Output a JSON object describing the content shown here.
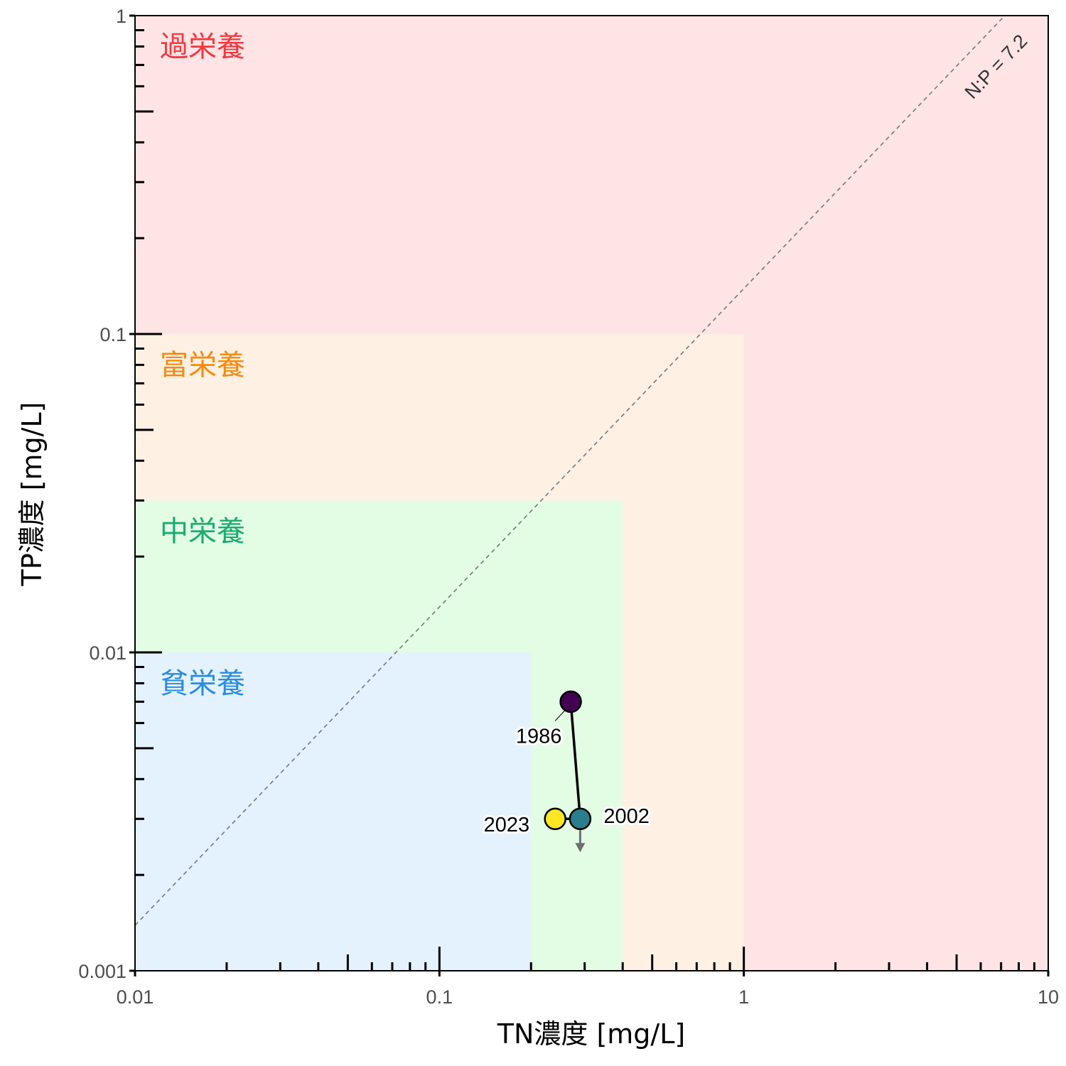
{
  "chart_data": {
    "type": "scatter",
    "title": "",
    "xlabel": "TN濃度 [mg/L]",
    "ylabel": "TP濃度 [mg/L]",
    "x_scale": "log",
    "y_scale": "log",
    "xlim": [
      0.01,
      10
    ],
    "ylim": [
      0.001,
      1
    ],
    "x_ticks": [
      {
        "value": 0.01,
        "label": "0.01"
      },
      {
        "value": 0.1,
        "label": "0.1"
      },
      {
        "value": 1,
        "label": "1"
      },
      {
        "value": 10,
        "label": "10"
      }
    ],
    "y_ticks": [
      {
        "value": 0.001,
        "label": "0.001"
      },
      {
        "value": 0.01,
        "label": "0.01"
      },
      {
        "value": 0.1,
        "label": "0.1"
      },
      {
        "value": 1,
        "label": "1"
      }
    ],
    "grid": false,
    "zones": [
      {
        "label": "過栄養",
        "tn_max": 10,
        "tp_max": 1,
        "fill": "#ffe4e6",
        "text_color": "#f0393f"
      },
      {
        "label": "富栄養",
        "tn_max": 1,
        "tp_max": 0.1,
        "fill": "#fff0e4",
        "text_color": "#f58b0c"
      },
      {
        "label": "中栄養",
        "tn_max": 0.4,
        "tp_max": 0.03,
        "fill": "#e3fde4",
        "text_color": "#1aab72"
      },
      {
        "label": "貧栄養",
        "tn_max": 0.2,
        "tp_max": 0.01,
        "fill": "#e4f2fd",
        "text_color": "#2a8de0"
      }
    ],
    "reference_line": {
      "label": "N:P = 7.2",
      "ratio": 7.2,
      "color": "#777777"
    },
    "points": [
      {
        "label": "1986",
        "tn": 0.27,
        "tp": 0.007,
        "color": "#440154"
      },
      {
        "label": "2002",
        "tn": 0.29,
        "tp": 0.003,
        "color": "#2a7f8e"
      },
      {
        "label": "2023",
        "tn": 0.24,
        "tp": 0.003,
        "color": "#fde725"
      }
    ],
    "trajectory": [
      "1986",
      "2002",
      "2023"
    ],
    "below_detection": {
      "label": "2002",
      "color": "#6e6e6e"
    }
  }
}
